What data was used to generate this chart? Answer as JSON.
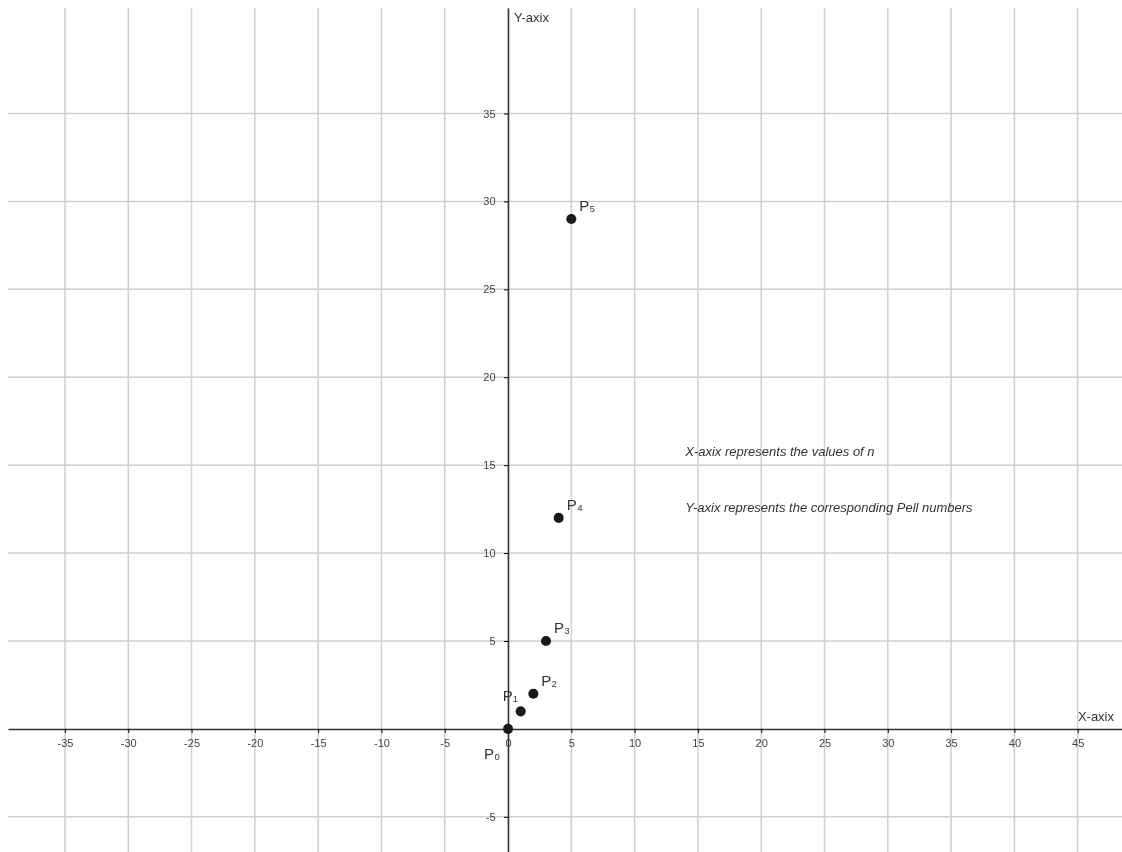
{
  "chart_data": {
    "type": "scatter",
    "xlabel": "X-axix",
    "ylabel": "Y-axix",
    "x": [
      0,
      1,
      2,
      3,
      4,
      5
    ],
    "values": [
      0,
      1,
      2,
      5,
      12,
      29
    ],
    "color": "#1a1a1a",
    "marker": "circle",
    "grid": true,
    "xlim": [
      -39.5,
      48.5
    ],
    "ylim": [
      -7,
      41
    ],
    "xticks": [
      -35,
      -30,
      -25,
      -20,
      -15,
      -10,
      -5,
      0,
      5,
      10,
      15,
      20,
      25,
      30,
      35,
      40,
      45
    ],
    "yticks": [
      -5,
      5,
      10,
      15,
      20,
      25,
      30,
      35
    ],
    "annotations": [
      {
        "text": "P₀",
        "x": 0,
        "y": 0
      },
      {
        "text": "P₁",
        "x": 1,
        "y": 1
      },
      {
        "text": "P₂",
        "x": 2,
        "y": 2
      },
      {
        "text": "P₃",
        "x": 3,
        "y": 5
      },
      {
        "text": "P₄",
        "x": 4,
        "y": 12
      },
      {
        "text": "P₅",
        "x": 5,
        "y": 29
      },
      "X-axix represents the values of n",
      "Y-axix represents the corresponding Pell numbers"
    ]
  }
}
